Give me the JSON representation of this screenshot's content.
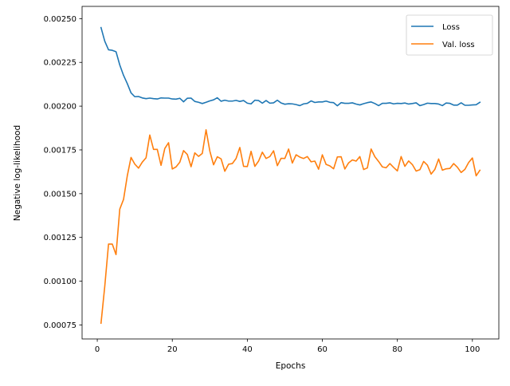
{
  "chart_data": {
    "type": "line",
    "title": "",
    "xlabel": "Epochs",
    "ylabel": "Negative log-likelihood",
    "xlim": [
      -4.05,
      107.05
    ],
    "ylim": [
      0.00067,
      0.00257
    ],
    "x_ticks": [
      0,
      20,
      40,
      60,
      80,
      100
    ],
    "x_tick_labels": [
      "0",
      "20",
      "40",
      "60",
      "80",
      "100"
    ],
    "y_ticks": [
      0.00075,
      0.001,
      0.00125,
      0.0015,
      0.00175,
      0.002,
      0.00225,
      0.0025
    ],
    "y_tick_labels": [
      "0.00075",
      "0.00100",
      "0.00125",
      "0.00150",
      "0.00175",
      "0.00200",
      "0.00225",
      "0.00250"
    ],
    "grid": false,
    "legend_position": "top-right",
    "series": [
      {
        "name": "Loss",
        "color": "#1f77b4",
        "x_start": 1,
        "x_step": 1,
        "values": [
          0.002449,
          0.002371,
          0.002322,
          0.002319,
          0.002311,
          0.002235,
          0.002176,
          0.002129,
          0.002076,
          0.002054,
          0.002055,
          0.002047,
          0.002043,
          0.002046,
          0.002043,
          0.002041,
          0.002047,
          0.002046,
          0.002046,
          0.002041,
          0.00204,
          0.002045,
          0.002025,
          0.002045,
          0.002046,
          0.002027,
          0.002022,
          0.002015,
          0.002022,
          0.00203,
          0.002036,
          0.002048,
          0.002028,
          0.002034,
          0.002029,
          0.002029,
          0.002033,
          0.002027,
          0.002032,
          0.002017,
          0.002013,
          0.002034,
          0.002032,
          0.002017,
          0.002032,
          0.002017,
          0.002019,
          0.002034,
          0.002018,
          0.002011,
          0.002014,
          0.002013,
          0.002009,
          0.002003,
          0.002013,
          0.002016,
          0.00203,
          0.002021,
          0.002024,
          0.002024,
          0.002029,
          0.002022,
          0.00202,
          0.002002,
          0.00202,
          0.002016,
          0.002016,
          0.002019,
          0.002012,
          0.002007,
          0.002014,
          0.00202,
          0.002024,
          0.002015,
          0.002003,
          0.002016,
          0.002016,
          0.002019,
          0.002013,
          0.002016,
          0.002015,
          0.002018,
          0.002012,
          0.002015,
          0.002019,
          0.002003,
          0.002009,
          0.002017,
          0.002015,
          0.002015,
          0.002012,
          0.002003,
          0.002018,
          0.002016,
          0.002006,
          0.002006,
          0.002019,
          0.002005,
          0.002005,
          0.002007,
          0.002008,
          0.002022
        ]
      },
      {
        "name": "Val. loss",
        "color": "#ff7f0e",
        "x_start": 1,
        "x_step": 1,
        "values": [
          0.00076,
          0.000971,
          0.001212,
          0.001212,
          0.001152,
          0.001412,
          0.001467,
          0.001602,
          0.001707,
          0.001669,
          0.001646,
          0.00168,
          0.001705,
          0.001835,
          0.001753,
          0.001753,
          0.001662,
          0.001758,
          0.001791,
          0.001641,
          0.001653,
          0.00168,
          0.001746,
          0.001724,
          0.001654,
          0.001733,
          0.001713,
          0.00173,
          0.001865,
          0.001744,
          0.001665,
          0.001711,
          0.001699,
          0.001628,
          0.001668,
          0.001672,
          0.001701,
          0.001764,
          0.001656,
          0.001655,
          0.001742,
          0.001656,
          0.001686,
          0.001737,
          0.001701,
          0.001712,
          0.001745,
          0.00166,
          0.001702,
          0.001701,
          0.001755,
          0.001675,
          0.001722,
          0.001709,
          0.001701,
          0.001712,
          0.001682,
          0.001686,
          0.00164,
          0.001722,
          0.001667,
          0.001659,
          0.001642,
          0.00171,
          0.001711,
          0.001641,
          0.001676,
          0.001693,
          0.001686,
          0.001712,
          0.001638,
          0.001647,
          0.001755,
          0.001711,
          0.001684,
          0.001653,
          0.001648,
          0.001672,
          0.00165,
          0.00163,
          0.001712,
          0.001656,
          0.001687,
          0.001666,
          0.001629,
          0.001637,
          0.001684,
          0.001663,
          0.001612,
          0.001639,
          0.001698,
          0.001634,
          0.001642,
          0.001644,
          0.001672,
          0.001651,
          0.001621,
          0.001639,
          0.001678,
          0.001704,
          0.001602,
          0.001634
        ]
      }
    ]
  }
}
